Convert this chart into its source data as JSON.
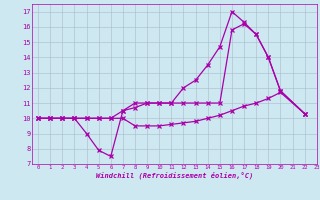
{
  "xlabel": "Windchill (Refroidissement éolien,°C)",
  "bg_color": "#cde8f0",
  "line_color": "#aa00aa",
  "grid_color": "#aabbcc",
  "xlim": [
    -0.5,
    23
  ],
  "ylim": [
    7,
    17.5
  ],
  "xticks": [
    0,
    1,
    2,
    3,
    4,
    5,
    6,
    7,
    8,
    9,
    10,
    11,
    12,
    13,
    14,
    15,
    16,
    17,
    18,
    19,
    20,
    21,
    22,
    23
  ],
  "yticks": [
    7,
    8,
    9,
    10,
    11,
    12,
    13,
    14,
    15,
    16,
    17
  ],
  "series1_x": [
    0,
    1,
    2,
    3,
    4,
    5,
    6,
    7,
    8,
    9,
    10,
    11,
    12,
    13,
    14,
    15,
    16,
    17,
    18,
    19,
    20,
    22
  ],
  "series1_y": [
    10,
    10,
    10,
    10,
    9,
    7.9,
    7.5,
    10.5,
    11,
    11,
    11,
    11,
    12,
    12.5,
    13.5,
    14.7,
    17,
    16.3,
    15.5,
    14,
    11.8,
    10.3
  ],
  "series2_x": [
    0,
    1,
    2,
    3,
    4,
    5,
    6,
    7,
    8,
    9,
    10,
    11,
    12,
    13,
    14,
    15,
    16,
    17,
    18,
    19,
    20,
    22
  ],
  "series2_y": [
    10,
    10,
    10,
    10,
    10,
    10,
    10,
    10.5,
    10.7,
    11,
    11,
    11,
    11,
    11,
    11,
    11,
    15.8,
    16.2,
    15.5,
    14,
    11.8,
    10.3
  ],
  "series3_x": [
    0,
    1,
    2,
    3,
    4,
    5,
    6,
    7,
    8,
    9,
    10,
    11,
    12,
    13,
    14,
    15,
    16,
    17,
    18,
    19,
    20,
    22
  ],
  "series3_y": [
    10,
    10,
    10,
    10,
    10,
    10,
    10,
    10,
    9.5,
    9.5,
    9.5,
    9.6,
    9.7,
    9.8,
    10,
    10.2,
    10.5,
    10.8,
    11,
    11.3,
    11.7,
    10.3
  ]
}
